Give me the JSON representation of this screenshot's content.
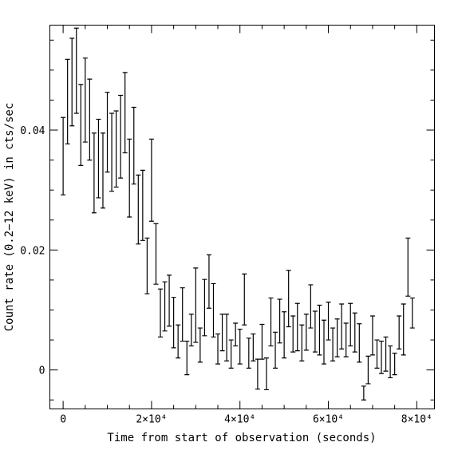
{
  "chart_data": {
    "type": "scatter",
    "style": "error bars",
    "title": "",
    "xlabel": "Time from start of observation (seconds)",
    "ylabel": "Count rate (0.2−12 keV) in cts/sec",
    "xlim": [
      -3000,
      84000
    ],
    "ylim": [
      -0.0065,
      0.0575
    ],
    "x_ticks": [
      {
        "value": 0,
        "label": "0"
      },
      {
        "value": 20000,
        "label": "2×10⁴"
      },
      {
        "value": 40000,
        "label": "4×10⁴"
      },
      {
        "value": 60000,
        "label": "6×10⁴"
      },
      {
        "value": 80000,
        "label": "8×10⁴"
      }
    ],
    "y_ticks": [
      {
        "value": 0,
        "label": "0"
      },
      {
        "value": 0.02,
        "label": "0.02"
      },
      {
        "value": 0.04,
        "label": "0.04"
      }
    ],
    "grid": false,
    "series": [
      {
        "points": [
          {
            "x": 0,
            "low": 0.0292,
            "high": 0.0421
          },
          {
            "x": 1000,
            "low": 0.0377,
            "high": 0.0518
          },
          {
            "x": 2000,
            "low": 0.0407,
            "high": 0.0553
          },
          {
            "x": 3000,
            "low": 0.0428,
            "high": 0.057
          },
          {
            "x": 4000,
            "low": 0.0341,
            "high": 0.0476
          },
          {
            "x": 5000,
            "low": 0.038,
            "high": 0.052
          },
          {
            "x": 6000,
            "low": 0.035,
            "high": 0.0485
          },
          {
            "x": 7000,
            "low": 0.0262,
            "high": 0.0395
          },
          {
            "x": 8000,
            "low": 0.0287,
            "high": 0.0418
          },
          {
            "x": 9000,
            "low": 0.027,
            "high": 0.0395
          },
          {
            "x": 10000,
            "low": 0.033,
            "high": 0.0463
          },
          {
            "x": 11000,
            "low": 0.0298,
            "high": 0.0428
          },
          {
            "x": 12000,
            "low": 0.0305,
            "high": 0.0432
          },
          {
            "x": 13000,
            "low": 0.032,
            "high": 0.0458
          },
          {
            "x": 14000,
            "low": 0.0362,
            "high": 0.0496
          },
          {
            "x": 15000,
            "low": 0.0255,
            "high": 0.0385
          },
          {
            "x": 16000,
            "low": 0.031,
            "high": 0.0438
          },
          {
            "x": 17000,
            "low": 0.021,
            "high": 0.0325
          },
          {
            "x": 18000,
            "low": 0.0216,
            "high": 0.0333
          },
          {
            "x": 19000,
            "low": 0.0127,
            "high": 0.022
          },
          {
            "x": 20000,
            "low": 0.0248,
            "high": 0.0385
          },
          {
            "x": 21000,
            "low": 0.0143,
            "high": 0.0244
          },
          {
            "x": 22000,
            "low": 0.0055,
            "high": 0.0135
          },
          {
            "x": 23000,
            "low": 0.0065,
            "high": 0.0147
          },
          {
            "x": 24000,
            "low": 0.0073,
            "high": 0.0158
          },
          {
            "x": 25000,
            "low": 0.0037,
            "high": 0.0121
          },
          {
            "x": 26000,
            "low": 0.002,
            "high": 0.0075
          },
          {
            "x": 27000,
            "low": 0.0048,
            "high": 0.0137
          },
          {
            "x": 28000,
            "low": -0.0008,
            "high": 0.0048
          },
          {
            "x": 29000,
            "low": 0.004,
            "high": 0.0093
          },
          {
            "x": 30000,
            "low": 0.0046,
            "high": 0.017
          },
          {
            "x": 31000,
            "low": 0.0013,
            "high": 0.007
          },
          {
            "x": 32000,
            "low": 0.0057,
            "high": 0.0151
          },
          {
            "x": 33000,
            "low": 0.0103,
            "high": 0.0192
          },
          {
            "x": 34000,
            "low": 0.0055,
            "high": 0.0144
          },
          {
            "x": 35000,
            "low": 0.001,
            "high": 0.006
          },
          {
            "x": 36000,
            "low": 0.0032,
            "high": 0.0093
          },
          {
            "x": 37000,
            "low": 0.0015,
            "high": 0.0093
          },
          {
            "x": 38000,
            "low": 0.0003,
            "high": 0.005
          },
          {
            "x": 39000,
            "low": 0.004,
            "high": 0.0078
          },
          {
            "x": 40000,
            "low": 0.001,
            "high": 0.0068
          },
          {
            "x": 41000,
            "low": 0.0075,
            "high": 0.016
          },
          {
            "x": 42000,
            "low": 0.0003,
            "high": 0.0053
          },
          {
            "x": 43000,
            "low": 0.0015,
            "high": 0.006
          },
          {
            "x": 44000,
            "low": -0.0032,
            "high": 0.0018
          },
          {
            "x": 45000,
            "low": 0.0018,
            "high": 0.0076
          },
          {
            "x": 46000,
            "low": -0.0033,
            "high": 0.002
          },
          {
            "x": 47000,
            "low": 0.004,
            "high": 0.012
          },
          {
            "x": 48000,
            "low": 0.0003,
            "high": 0.0063
          },
          {
            "x": 49000,
            "low": 0.0045,
            "high": 0.0118
          },
          {
            "x": 50000,
            "low": 0.002,
            "high": 0.0097
          },
          {
            "x": 51000,
            "low": 0.0072,
            "high": 0.0166
          },
          {
            "x": 52000,
            "low": 0.003,
            "high": 0.009
          },
          {
            "x": 53000,
            "low": 0.0032,
            "high": 0.0111
          },
          {
            "x": 54000,
            "low": 0.0015,
            "high": 0.0075
          },
          {
            "x": 55000,
            "low": 0.0033,
            "high": 0.0093
          },
          {
            "x": 56000,
            "low": 0.007,
            "high": 0.0142
          },
          {
            "x": 57000,
            "low": 0.003,
            "high": 0.0098
          },
          {
            "x": 58000,
            "low": 0.0025,
            "high": 0.0108
          },
          {
            "x": 59000,
            "low": 0.001,
            "high": 0.0083
          },
          {
            "x": 60000,
            "low": 0.005,
            "high": 0.0113
          },
          {
            "x": 61000,
            "low": 0.0015,
            "high": 0.007
          },
          {
            "x": 62000,
            "low": 0.0022,
            "high": 0.0085
          },
          {
            "x": 63000,
            "low": 0.0035,
            "high": 0.011
          },
          {
            "x": 64000,
            "low": 0.0022,
            "high": 0.0078
          },
          {
            "x": 65000,
            "low": 0.004,
            "high": 0.0111
          },
          {
            "x": 66000,
            "low": 0.003,
            "high": 0.0095
          },
          {
            "x": 67000,
            "low": 0.0013,
            "high": 0.0077
          },
          {
            "x": 68000,
            "low": -0.005,
            "high": -0.0027
          },
          {
            "x": 69000,
            "low": -0.0023,
            "high": 0.0023
          },
          {
            "x": 70000,
            "low": 0.0025,
            "high": 0.009
          },
          {
            "x": 71000,
            "low": 0.0003,
            "high": 0.005
          },
          {
            "x": 72000,
            "low": -0.0006,
            "high": 0.0048
          },
          {
            "x": 73000,
            "low": -0.0002,
            "high": 0.0055
          },
          {
            "x": 74000,
            "low": -0.0013,
            "high": 0.004
          },
          {
            "x": 75000,
            "low": -0.0008,
            "high": 0.0028
          },
          {
            "x": 76000,
            "low": 0.0035,
            "high": 0.009
          },
          {
            "x": 77000,
            "low": 0.0025,
            "high": 0.011
          },
          {
            "x": 78000,
            "low": 0.0123,
            "high": 0.022
          },
          {
            "x": 79000,
            "low": 0.007,
            "high": 0.012
          }
        ]
      }
    ]
  }
}
